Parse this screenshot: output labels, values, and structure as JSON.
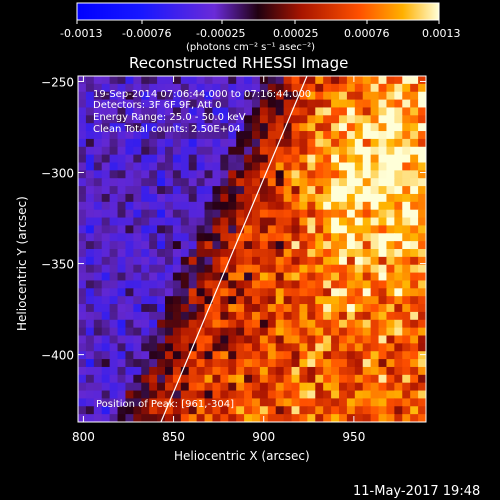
{
  "colorbar": {
    "ticks": [
      "-0.0013",
      "-0.00076",
      "-0.00025",
      "0.00025",
      "0.00076",
      "0.0013"
    ],
    "tick_values": [
      -0.0013,
      -0.00076,
      -0.00025,
      0.00025,
      0.00076,
      0.0013
    ],
    "range": [
      -0.0013,
      0.0013
    ],
    "unit_label": "(photons cm⁻² s⁻¹ asec⁻²)"
  },
  "chart_data": {
    "type": "heatmap",
    "title": "Reconstructed RHESSI Image",
    "xlabel": "Heliocentric X (arcsec)",
    "ylabel": "Heliocentric Y (arcsec)",
    "xlim": [
      797,
      990
    ],
    "ylim": [
      -437,
      -247
    ],
    "xticks": [
      800,
      850,
      900,
      950
    ],
    "xtick_labels": [
      "800",
      "850",
      "900",
      "950"
    ],
    "yticks": [
      -250,
      -300,
      -350,
      -400
    ],
    "ytick_labels": [
      "−250",
      "−300",
      "−350",
      "−400"
    ],
    "colormap": "rhessi-blue-purple-red-yellow-white",
    "limb_line": {
      "x": [
        843,
        924
      ],
      "y": [
        -437,
        -247
      ]
    },
    "peak_position": [
      961,
      -304
    ],
    "annotations": {
      "time": "19-Sep-2014 07:06:44.000 to 07:16:44.000",
      "detectors": "Detectors: 3F 6F 9F, Att 0",
      "energy": "Energy Range: 25.0 - 50.0 keV",
      "clean": "Clean    Total counts: 2.50E+04",
      "peak": "Position of Peak: [961,-304]"
    }
  },
  "footer": {
    "timestamp": "11-May-2017 19:48"
  }
}
